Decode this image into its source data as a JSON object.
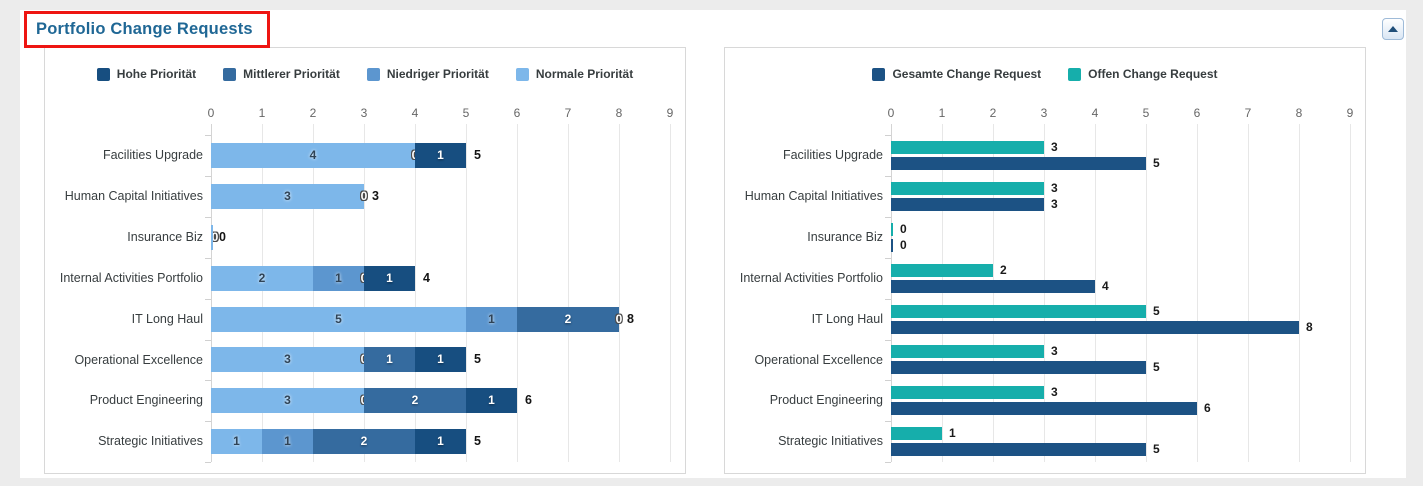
{
  "page": {
    "title": "Portfolio Change Requests"
  },
  "colors": {
    "title": "#1f6795",
    "annotation_red": "#ee1512",
    "page_bg": "#ececec",
    "grid": "#e7e7e7",
    "hohe": "#174e80",
    "mittlerer": "#356b9f",
    "niedriger": "#5c96cf",
    "normale": "#7db7ea",
    "gesamte": "#1c5284",
    "offen": "#16aeab"
  },
  "icons": {
    "collapse": "chevron-up-icon"
  },
  "chart_data": [
    {
      "type": "bar",
      "orientation": "horizontal",
      "stacked": true,
      "legend_position": "top",
      "xlim": [
        0,
        9
      ],
      "ticks": [
        "0",
        "1",
        "2",
        "3",
        "4",
        "5",
        "6",
        "7",
        "8",
        "9"
      ],
      "categories": [
        "Facilities Upgrade",
        "Human Capital Initiatives",
        "Insurance Biz",
        "Internal Activities Portfolio",
        "IT Long Haul",
        "Operational Excellence",
        "Product Engineering",
        "Strategic Initiatives"
      ],
      "series": [
        {
          "name": "Hohe Priorität",
          "color": "#174e80",
          "values": [
            1,
            0,
            0,
            1,
            0,
            1,
            1,
            1
          ]
        },
        {
          "name": "Mittlerer Priorität",
          "color": "#356b9f",
          "values": [
            0,
            0,
            0,
            0,
            2,
            1,
            2,
            2
          ]
        },
        {
          "name": "Niedriger Priorität",
          "color": "#5c96cf",
          "values": [
            0,
            0,
            0,
            1,
            1,
            0,
            0,
            1
          ]
        },
        {
          "name": "Normale Priorität",
          "color": "#7db7ea",
          "values": [
            4,
            3,
            0,
            2,
            5,
            3,
            3,
            1
          ]
        }
      ],
      "totals": [
        5,
        3,
        0,
        4,
        8,
        5,
        6,
        5
      ]
    },
    {
      "type": "bar",
      "orientation": "horizontal",
      "stacked": false,
      "legend_position": "top",
      "xlim": [
        0,
        9
      ],
      "ticks": [
        "0",
        "1",
        "2",
        "3",
        "4",
        "5",
        "6",
        "7",
        "8",
        "9"
      ],
      "categories": [
        "Facilities Upgrade",
        "Human Capital Initiatives",
        "Insurance Biz",
        "Internal Activities Portfolio",
        "IT Long Haul",
        "Operational Excellence",
        "Product Engineering",
        "Strategic Initiatives"
      ],
      "series": [
        {
          "name": "Gesamte Change Request",
          "color": "#1c5284",
          "values": [
            5,
            3,
            0,
            4,
            8,
            5,
            6,
            5
          ]
        },
        {
          "name": "Offen Change Request",
          "color": "#16aeab",
          "values": [
            3,
            3,
            0,
            2,
            5,
            3,
            3,
            1
          ]
        }
      ]
    }
  ]
}
